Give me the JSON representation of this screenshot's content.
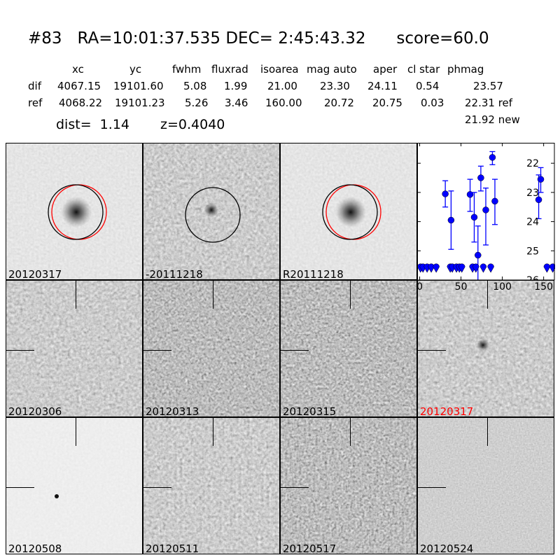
{
  "header": {
    "title": "#83   RA=10:01:37.535 DEC= 2:45:43.32      score=60.0"
  },
  "table": {
    "columns": [
      "xc",
      "yc",
      "fwhm",
      "fluxrad",
      "isoarea",
      "mag auto",
      "aper",
      "cl star",
      "phmag"
    ],
    "rows": [
      {
        "label": "dif",
        "values": [
          "4067.15",
          "19101.60",
          "5.08",
          "1.99",
          "21.00",
          "23.30",
          "24.11",
          "0.54",
          "23.57"
        ]
      },
      {
        "label": "ref",
        "values": [
          "4068.22",
          "19101.23",
          "5.26",
          "3.46",
          "160.00",
          "20.72",
          "20.75",
          "0.03",
          "22.31 ref"
        ]
      }
    ],
    "new_phmag": "21.92 new",
    "dist": "dist=  1.14",
    "z": "z=0.4040"
  },
  "panels": [
    {
      "label": "20120317",
      "tone": "light",
      "color": "#000000"
    },
    {
      "label": "-20111218",
      "tone": "mid",
      "color": "#000000"
    },
    {
      "label": "R20111218",
      "tone": "light",
      "color": "#000000"
    },
    {
      "label": "20120306",
      "tone": "mid",
      "color": "#000000"
    },
    {
      "label": "20120313",
      "tone": "dark",
      "color": "#000000"
    },
    {
      "label": "20120315",
      "tone": "dark",
      "color": "#000000"
    },
    {
      "label": "20120317",
      "tone": "mid",
      "color": "#ff0000"
    },
    {
      "label": "20120508",
      "tone": "verylight",
      "color": "#000000"
    },
    {
      "label": "20120511",
      "tone": "mid",
      "color": "#000000"
    },
    {
      "label": "20120517",
      "tone": "dark",
      "color": "#000000"
    },
    {
      "label": "20120524",
      "tone": "flat",
      "color": "#000000"
    }
  ],
  "chart_data": {
    "type": "scatter",
    "xlim": [
      -3,
      163
    ],
    "ylim": [
      26,
      21.3
    ],
    "y_inverted": true,
    "xticks": [
      "0",
      "50",
      "100",
      "150"
    ],
    "yticks": [
      "22",
      "23",
      "24",
      "25",
      "26"
    ],
    "color": "#0000ff",
    "detections": [
      {
        "x": 31,
        "y": 23.05,
        "lo": 22.6,
        "hi": 23.5
      },
      {
        "x": 38,
        "y": 23.95,
        "lo": 22.95,
        "hi": 24.95
      },
      {
        "x": 61,
        "y": 23.07,
        "lo": 22.55,
        "hi": 23.65
      },
      {
        "x": 66,
        "y": 23.85,
        "lo": 23.0,
        "hi": 24.7
      },
      {
        "x": 70.5,
        "y": 25.15,
        "lo": 24.15,
        "hi": 26.0
      },
      {
        "x": 74,
        "y": 22.5,
        "lo": 22.1,
        "hi": 22.95
      },
      {
        "x": 80,
        "y": 23.6,
        "lo": 22.85,
        "hi": 24.8
      },
      {
        "x": 88,
        "y": 21.8,
        "lo": 21.6,
        "hi": 22.05
      },
      {
        "x": 91,
        "y": 23.3,
        "lo": 22.55,
        "hi": 24.1
      },
      {
        "x": 144,
        "y": 23.25,
        "lo": 22.4,
        "hi": 23.9
      },
      {
        "x": 146.5,
        "y": 22.55,
        "lo": 22.15,
        "hi": 23.0
      }
    ],
    "upper_limits": {
      "y": 25.55,
      "x": [
        1,
        4,
        9,
        14,
        20,
        37,
        39.5,
        44.5,
        48,
        51,
        64,
        68,
        77,
        86,
        154,
        161
      ]
    }
  }
}
